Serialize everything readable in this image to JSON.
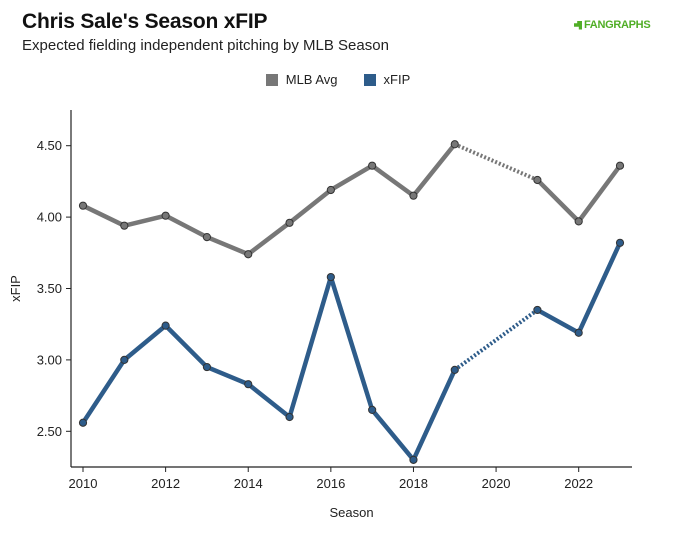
{
  "chart_data": {
    "type": "line",
    "title": "Chris Sale's Season xFIP",
    "subtitle": "Expected fielding independent pitching by MLB Season",
    "logo_text": "FANGRAPHS",
    "xlabel": "Season",
    "ylabel": "xFIP",
    "xlim": [
      2010,
      2023
    ],
    "ylim": [
      2.25,
      4.75
    ],
    "x_ticks": [
      2010,
      2012,
      2014,
      2016,
      2018,
      2020,
      2022
    ],
    "y_ticks": [
      "2.50",
      "3.00",
      "3.50",
      "4.00",
      "4.50"
    ],
    "legend_position": "top-center",
    "grid": false,
    "series": [
      {
        "name": "MLB Avg",
        "color": "#777777",
        "points": [
          [
            2010,
            4.08
          ],
          [
            2011,
            3.94
          ],
          [
            2012,
            4.01
          ],
          [
            2013,
            3.86
          ],
          [
            2014,
            3.74
          ],
          [
            2015,
            3.96
          ],
          [
            2016,
            4.19
          ],
          [
            2017,
            4.36
          ],
          [
            2018,
            4.15
          ],
          [
            2019,
            4.51
          ],
          [
            2021,
            4.26
          ],
          [
            2022,
            3.97
          ],
          [
            2023,
            4.36
          ]
        ]
      },
      {
        "name": "xFIP",
        "color": "#2e5c8a",
        "points": [
          [
            2010,
            2.56
          ],
          [
            2011,
            3.0
          ],
          [
            2012,
            3.24
          ],
          [
            2013,
            2.95
          ],
          [
            2014,
            2.83
          ],
          [
            2015,
            2.6
          ],
          [
            2016,
            3.58
          ],
          [
            2017,
            2.65
          ],
          [
            2018,
            2.3
          ],
          [
            2019,
            2.93
          ],
          [
            2021,
            3.35
          ],
          [
            2022,
            3.19
          ],
          [
            2023,
            3.82
          ]
        ]
      }
    ]
  }
}
